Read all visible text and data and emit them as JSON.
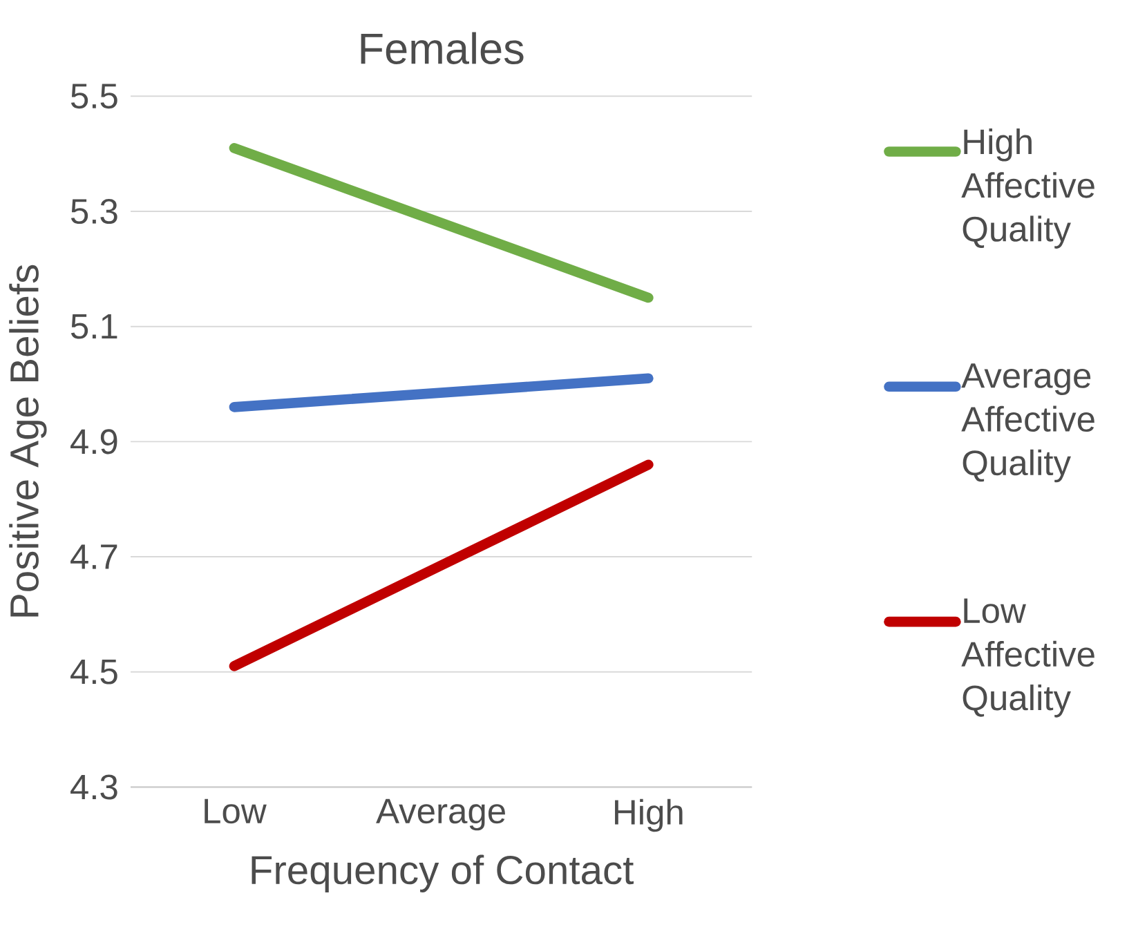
{
  "chart_data": {
    "type": "line",
    "title": "Females",
    "xlabel": "Frequency of Contact",
    "ylabel": "Positive Age Beliefs",
    "categories": [
      "Low",
      "Average",
      "High"
    ],
    "series": [
      {
        "name": "High Affective Quality",
        "color": "#70ad47",
        "values": [
          5.41,
          5.28,
          5.15
        ]
      },
      {
        "name": "Average Affective Quality",
        "color": "#4472c4",
        "values": [
          4.96,
          4.985,
          5.01
        ]
      },
      {
        "name": "Low Affective Quality",
        "color": "#c00000",
        "values": [
          4.51,
          4.685,
          4.86
        ]
      }
    ],
    "ylim": [
      4.3,
      5.5
    ],
    "yticks": [
      4.3,
      4.5,
      4.7,
      4.9,
      5.1,
      5.3,
      5.5
    ],
    "grid": "y",
    "legend": "right"
  }
}
